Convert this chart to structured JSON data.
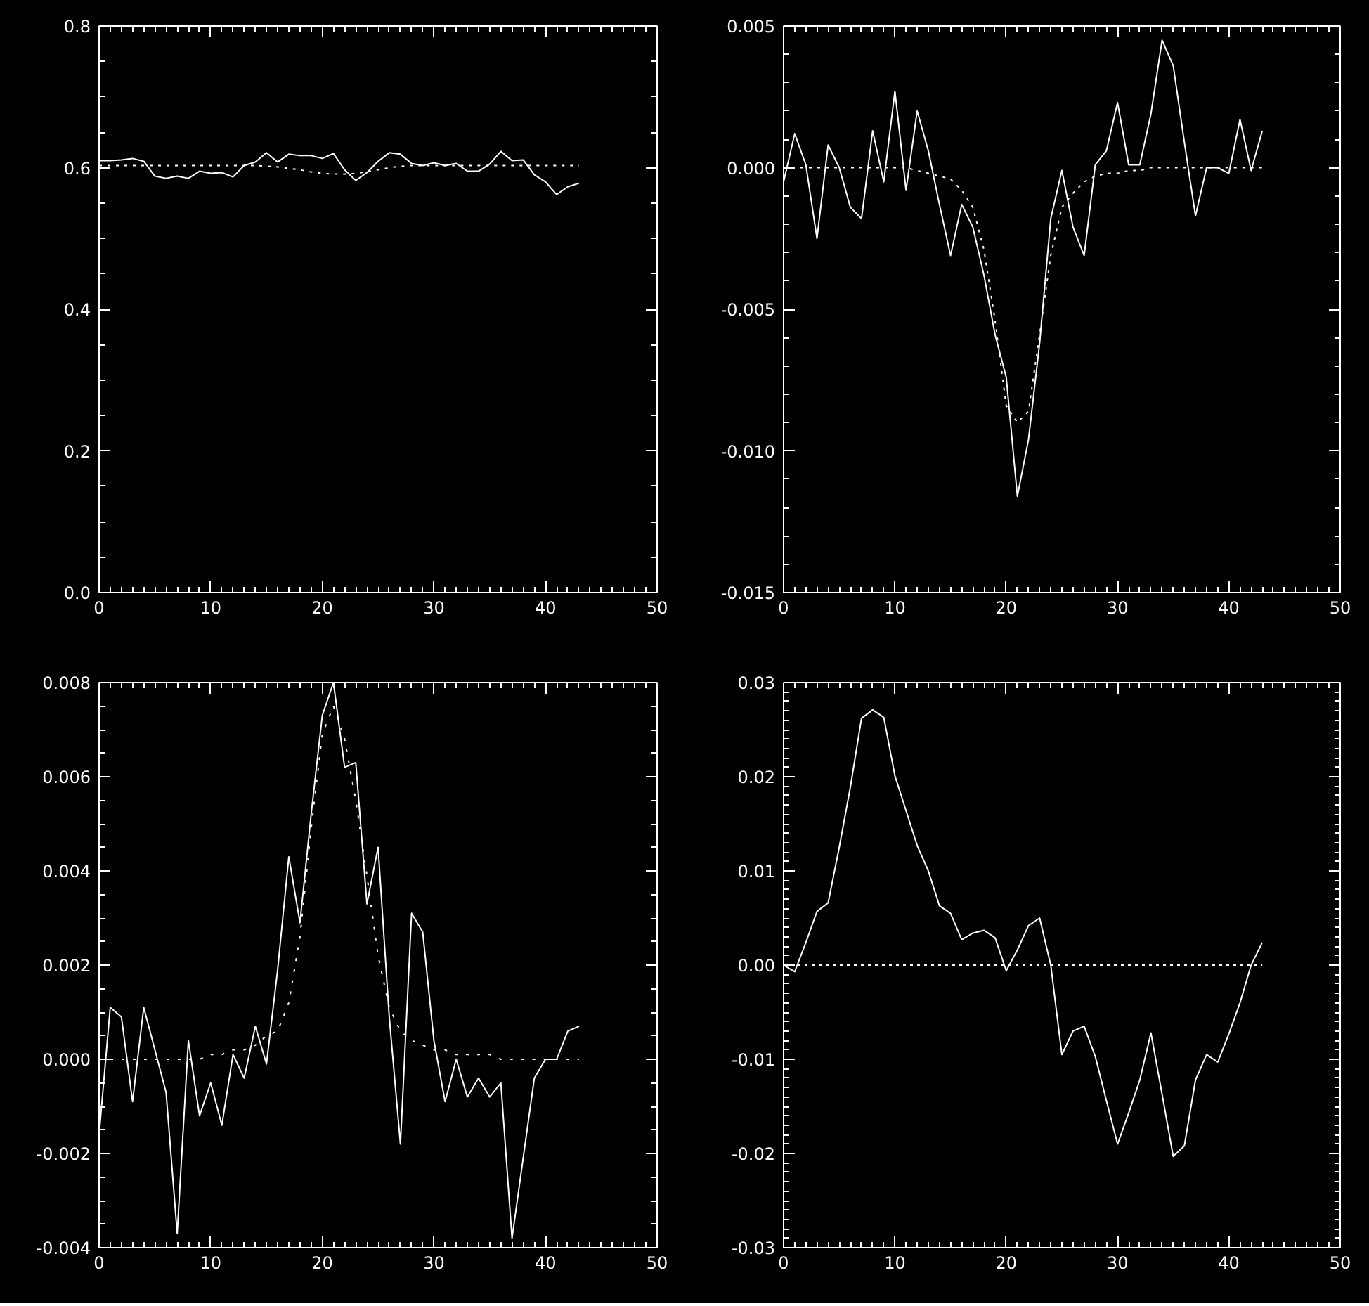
{
  "chart_data": [
    {
      "type": "line",
      "xlim": [
        0,
        50
      ],
      "ylim": [
        0,
        0.8
      ],
      "xticks": [
        0,
        {
          "value": 1,
          "label": null
        },
        {
          "value": 2,
          "label": null
        },
        {
          "value": 3,
          "label": null
        },
        {
          "value": 4,
          "label": null
        },
        {
          "value": 5,
          "label": null
        },
        {
          "value": 6,
          "label": null
        },
        {
          "value": 7,
          "label": null
        },
        {
          "value": 8,
          "label": null
        },
        {
          "value": 9,
          "label": null
        },
        10,
        {
          "value": 11,
          "label": null
        },
        {
          "value": 12,
          "label": null
        },
        {
          "value": 13,
          "label": null
        },
        {
          "value": 14,
          "label": null
        },
        {
          "value": 15,
          "label": null
        },
        {
          "value": 16,
          "label": null
        },
        {
          "value": 17,
          "label": null
        },
        {
          "value": 18,
          "label": null
        },
        {
          "value": 19,
          "label": null
        },
        20,
        {
          "value": 21,
          "label": null
        },
        {
          "value": 22,
          "label": null
        },
        {
          "value": 23,
          "label": null
        },
        {
          "value": 24,
          "label": null
        },
        {
          "value": 25,
          "label": null
        },
        {
          "value": 26,
          "label": null
        },
        {
          "value": 27,
          "label": null
        },
        {
          "value": 28,
          "label": null
        },
        {
          "value": 29,
          "label": null
        },
        30,
        {
          "value": 31,
          "label": null
        },
        {
          "value": 32,
          "label": null
        },
        {
          "value": 33,
          "label": null
        },
        {
          "value": 34,
          "label": null
        },
        {
          "value": 35,
          "label": null
        },
        {
          "value": 36,
          "label": null
        },
        {
          "value": 37,
          "label": null
        },
        {
          "value": 38,
          "label": null
        },
        {
          "value": 39,
          "label": null
        },
        40,
        {
          "value": 41,
          "label": null
        },
        {
          "value": 42,
          "label": null
        },
        {
          "value": 43,
          "label": null
        },
        {
          "value": 44,
          "label": null
        },
        {
          "value": 45,
          "label": null
        },
        {
          "value": 46,
          "label": null
        },
        {
          "value": 47,
          "label": null
        },
        {
          "value": 48,
          "label": null
        },
        {
          "value": 49,
          "label": null
        },
        50
      ],
      "yticks": [
        {
          "value": 0,
          "label": "0.0"
        },
        {
          "value": 0.05,
          "label": null
        },
        {
          "value": 0.1,
          "label": null
        },
        {
          "value": 0.15,
          "label": null
        },
        0.2,
        {
          "value": 0.25,
          "label": null
        },
        {
          "value": 0.3,
          "label": null
        },
        {
          "value": 0.35,
          "label": null
        },
        0.4,
        {
          "value": 0.45,
          "label": null
        },
        {
          "value": 0.5,
          "label": null
        },
        {
          "value": 0.55,
          "label": null
        },
        0.6,
        {
          "value": 0.65,
          "label": null
        },
        {
          "value": 0.7,
          "label": null
        },
        {
          "value": 0.75,
          "label": null
        },
        0.8
      ],
      "x": [
        0,
        1,
        2,
        3,
        4,
        5,
        6,
        7,
        8,
        9,
        10,
        11,
        12,
        13,
        14,
        15,
        16,
        17,
        18,
        19,
        20,
        21,
        22,
        23,
        24,
        25,
        26,
        27,
        28,
        29,
        30,
        31,
        32,
        33,
        34,
        35,
        36,
        37,
        38,
        39,
        40,
        41,
        42,
        43
      ],
      "series": [
        {
          "color": "#ffffff",
          "line_style": "solid",
          "values": [
            0.61,
            0.61,
            0.611,
            0.613,
            0.609,
            0.588,
            0.585,
            0.588,
            0.585,
            0.595,
            0.592,
            0.593,
            0.587,
            0.603,
            0.608,
            0.621,
            0.608,
            0.619,
            0.617,
            0.617,
            0.613,
            0.62,
            0.597,
            0.582,
            0.593,
            0.609,
            0.621,
            0.619,
            0.606,
            0.603,
            0.607,
            0.603,
            0.606,
            0.595,
            0.595,
            0.605,
            0.623,
            0.61,
            0.611,
            0.59,
            0.58,
            0.562,
            0.573,
            0.578
          ]
        },
        {
          "color": "#ffffff",
          "line_style": "dotted",
          "values": [
            0.603,
            0.603,
            0.603,
            0.603,
            0.603,
            0.603,
            0.603,
            0.603,
            0.603,
            0.603,
            0.603,
            0.603,
            0.603,
            0.603,
            0.603,
            0.602,
            0.601,
            0.599,
            0.597,
            0.594,
            0.592,
            0.591,
            0.591,
            0.592,
            0.594,
            0.597,
            0.6,
            0.602,
            0.603,
            0.603,
            0.603,
            0.603,
            0.603,
            0.603,
            0.603,
            0.603,
            0.603,
            0.603,
            0.603,
            0.603,
            0.603,
            0.603,
            0.603,
            0.603
          ]
        }
      ]
    },
    {
      "type": "line",
      "xlim": [
        0,
        50
      ],
      "ylim": [
        -0.015,
        0.005
      ],
      "xticks": [
        0,
        {
          "value": 1,
          "label": null
        },
        {
          "value": 2,
          "label": null
        },
        {
          "value": 3,
          "label": null
        },
        {
          "value": 4,
          "label": null
        },
        {
          "value": 5,
          "label": null
        },
        {
          "value": 6,
          "label": null
        },
        {
          "value": 7,
          "label": null
        },
        {
          "value": 8,
          "label": null
        },
        {
          "value": 9,
          "label": null
        },
        10,
        {
          "value": 11,
          "label": null
        },
        {
          "value": 12,
          "label": null
        },
        {
          "value": 13,
          "label": null
        },
        {
          "value": 14,
          "label": null
        },
        {
          "value": 15,
          "label": null
        },
        {
          "value": 16,
          "label": null
        },
        {
          "value": 17,
          "label": null
        },
        {
          "value": 18,
          "label": null
        },
        {
          "value": 19,
          "label": null
        },
        20,
        {
          "value": 21,
          "label": null
        },
        {
          "value": 22,
          "label": null
        },
        {
          "value": 23,
          "label": null
        },
        {
          "value": 24,
          "label": null
        },
        {
          "value": 25,
          "label": null
        },
        {
          "value": 26,
          "label": null
        },
        {
          "value": 27,
          "label": null
        },
        {
          "value": 28,
          "label": null
        },
        {
          "value": 29,
          "label": null
        },
        30,
        {
          "value": 31,
          "label": null
        },
        {
          "value": 32,
          "label": null
        },
        {
          "value": 33,
          "label": null
        },
        {
          "value": 34,
          "label": null
        },
        {
          "value": 35,
          "label": null
        },
        {
          "value": 36,
          "label": null
        },
        {
          "value": 37,
          "label": null
        },
        {
          "value": 38,
          "label": null
        },
        {
          "value": 39,
          "label": null
        },
        40,
        {
          "value": 41,
          "label": null
        },
        {
          "value": 42,
          "label": null
        },
        {
          "value": 43,
          "label": null
        },
        {
          "value": 44,
          "label": null
        },
        {
          "value": 45,
          "label": null
        },
        {
          "value": 46,
          "label": null
        },
        {
          "value": 47,
          "label": null
        },
        {
          "value": 48,
          "label": null
        },
        {
          "value": 49,
          "label": null
        },
        50
      ],
      "yticks": [
        -0.015,
        {
          "value": -0.014,
          "label": null
        },
        {
          "value": -0.013,
          "label": null
        },
        {
          "value": -0.012,
          "label": null
        },
        {
          "value": -0.011,
          "label": null
        },
        {
          "value": -0.01,
          "label": "-0.010"
        },
        {
          "value": -0.009,
          "label": null
        },
        {
          "value": -0.008,
          "label": null
        },
        {
          "value": -0.007,
          "label": null
        },
        {
          "value": -0.006,
          "label": null
        },
        -0.005,
        {
          "value": -0.004,
          "label": null
        },
        {
          "value": -0.003,
          "label": null
        },
        {
          "value": -0.002,
          "label": null
        },
        {
          "value": -0.001,
          "label": null
        },
        {
          "value": 0,
          "label": "0.000"
        },
        {
          "value": 0.001,
          "label": null
        },
        {
          "value": 0.002,
          "label": null
        },
        {
          "value": 0.003,
          "label": null
        },
        {
          "value": 0.004,
          "label": null
        },
        0.005
      ],
      "x": [
        0,
        1,
        2,
        3,
        4,
        5,
        6,
        7,
        8,
        9,
        10,
        11,
        12,
        13,
        14,
        15,
        16,
        17,
        18,
        19,
        20,
        21,
        22,
        23,
        24,
        25,
        26,
        27,
        28,
        29,
        30,
        31,
        32,
        33,
        34,
        35,
        36,
        37,
        38,
        39,
        40,
        41,
        42,
        43
      ],
      "series": [
        {
          "color": "#ffffff",
          "line_style": "solid",
          "values": [
            -0.0005,
            0.0012,
            0.0001,
            -0.0025,
            0.0008,
            0.0,
            -0.0014,
            -0.0018,
            0.0013,
            -0.0005,
            0.0027,
            -0.0008,
            0.002,
            0.0006,
            -0.0013,
            -0.0031,
            -0.0013,
            -0.0021,
            -0.0038,
            -0.0059,
            -0.0074,
            -0.0116,
            -0.0096,
            -0.0062,
            -0.0018,
            -0.0001,
            -0.0021,
            -0.0031,
            0.0001,
            0.0006,
            0.0023,
            0.0001,
            0.0001,
            0.0019,
            0.0045,
            0.0036,
            0.0009,
            -0.0017,
            0.0,
            0.0,
            -0.0002,
            0.0017,
            -0.0001,
            0.0013
          ]
        },
        {
          "color": "#ffffff",
          "line_style": "dotted",
          "values": [
            0.0,
            0.0,
            0.0,
            0.0,
            0.0,
            0.0,
            0.0,
            0.0,
            0.0,
            0.0,
            0.0,
            0.0,
            -0.0001,
            -0.0002,
            -0.0003,
            -0.0004,
            -0.0008,
            -0.0014,
            -0.0029,
            -0.0054,
            -0.0084,
            -0.009,
            -0.0086,
            -0.0059,
            -0.0031,
            -0.0014,
            -0.0009,
            -0.0005,
            -0.0003,
            -0.0002,
            -0.0002,
            -0.0001,
            -0.0001,
            0.0,
            0.0,
            0.0,
            0.0,
            0.0,
            0.0,
            0.0,
            0.0,
            0.0,
            0.0,
            0.0
          ]
        }
      ]
    },
    {
      "type": "line",
      "xlim": [
        0,
        50
      ],
      "ylim": [
        -0.004,
        0.008
      ],
      "xticks": [
        0,
        {
          "value": 1,
          "label": null
        },
        {
          "value": 2,
          "label": null
        },
        {
          "value": 3,
          "label": null
        },
        {
          "value": 4,
          "label": null
        },
        {
          "value": 5,
          "label": null
        },
        {
          "value": 6,
          "label": null
        },
        {
          "value": 7,
          "label": null
        },
        {
          "value": 8,
          "label": null
        },
        {
          "value": 9,
          "label": null
        },
        10,
        {
          "value": 11,
          "label": null
        },
        {
          "value": 12,
          "label": null
        },
        {
          "value": 13,
          "label": null
        },
        {
          "value": 14,
          "label": null
        },
        {
          "value": 15,
          "label": null
        },
        {
          "value": 16,
          "label": null
        },
        {
          "value": 17,
          "label": null
        },
        {
          "value": 18,
          "label": null
        },
        {
          "value": 19,
          "label": null
        },
        20,
        {
          "value": 21,
          "label": null
        },
        {
          "value": 22,
          "label": null
        },
        {
          "value": 23,
          "label": null
        },
        {
          "value": 24,
          "label": null
        },
        {
          "value": 25,
          "label": null
        },
        {
          "value": 26,
          "label": null
        },
        {
          "value": 27,
          "label": null
        },
        {
          "value": 28,
          "label": null
        },
        {
          "value": 29,
          "label": null
        },
        30,
        {
          "value": 31,
          "label": null
        },
        {
          "value": 32,
          "label": null
        },
        {
          "value": 33,
          "label": null
        },
        {
          "value": 34,
          "label": null
        },
        {
          "value": 35,
          "label": null
        },
        {
          "value": 36,
          "label": null
        },
        {
          "value": 37,
          "label": null
        },
        {
          "value": 38,
          "label": null
        },
        {
          "value": 39,
          "label": null
        },
        40,
        {
          "value": 41,
          "label": null
        },
        {
          "value": 42,
          "label": null
        },
        {
          "value": 43,
          "label": null
        },
        {
          "value": 44,
          "label": null
        },
        {
          "value": 45,
          "label": null
        },
        {
          "value": 46,
          "label": null
        },
        {
          "value": 47,
          "label": null
        },
        {
          "value": 48,
          "label": null
        },
        {
          "value": 49,
          "label": null
        },
        50
      ],
      "yticks": [
        -0.004,
        {
          "value": -0.0035,
          "label": null
        },
        {
          "value": -0.003,
          "label": null
        },
        {
          "value": -0.0025,
          "label": null
        },
        -0.002,
        {
          "value": -0.0015,
          "label": null
        },
        {
          "value": -0.001,
          "label": null
        },
        {
          "value": -0.0005,
          "label": null
        },
        {
          "value": 0,
          "label": "0.000"
        },
        {
          "value": 0.0005,
          "label": null
        },
        {
          "value": 0.001,
          "label": null
        },
        {
          "value": 0.0015,
          "label": null
        },
        0.002,
        {
          "value": 0.0025,
          "label": null
        },
        {
          "value": 0.003,
          "label": null
        },
        {
          "value": 0.0035,
          "label": null
        },
        0.004,
        {
          "value": 0.0045,
          "label": null
        },
        {
          "value": 0.005,
          "label": null
        },
        {
          "value": 0.0055,
          "label": null
        },
        0.006,
        {
          "value": 0.0065,
          "label": null
        },
        {
          "value": 0.007,
          "label": null
        },
        {
          "value": 0.0075,
          "label": null
        },
        0.008
      ],
      "x": [
        0,
        1,
        2,
        3,
        4,
        5,
        6,
        7,
        8,
        9,
        10,
        11,
        12,
        13,
        14,
        15,
        16,
        17,
        18,
        19,
        20,
        21,
        22,
        23,
        24,
        25,
        26,
        27,
        28,
        29,
        30,
        31,
        32,
        33,
        34,
        35,
        36,
        37,
        38,
        39,
        40,
        41,
        42,
        43
      ],
      "series": [
        {
          "color": "#ffffff",
          "line_style": "solid",
          "values": [
            -0.0016,
            0.0011,
            0.0009,
            -0.0009,
            0.0011,
            0.0002,
            -0.0007,
            -0.0037,
            0.0004,
            -0.0012,
            -0.0005,
            -0.0014,
            0.0001,
            -0.0004,
            0.0007,
            -0.0001,
            0.0019,
            0.0043,
            0.0029,
            0.0052,
            0.0073,
            0.008,
            0.0062,
            0.0063,
            0.0033,
            0.0045,
            0.0009,
            -0.0018,
            0.0031,
            0.0027,
            0.0004,
            -0.0009,
            0.0,
            -0.0008,
            -0.0004,
            -0.0008,
            -0.0005,
            -0.0038,
            -0.0021,
            -0.0004,
            0.0,
            0.0,
            0.0006,
            0.0007
          ]
        },
        {
          "color": "#ffffff",
          "line_style": "dotted",
          "values": [
            0.0,
            0.0,
            0.0,
            0.0,
            0.0,
            0.0,
            0.0,
            0.0,
            0.0,
            0.0,
            0.0001,
            0.0001,
            0.0002,
            0.0002,
            0.0003,
            0.0005,
            0.0006,
            0.0012,
            0.0026,
            0.0049,
            0.0069,
            0.0075,
            0.0068,
            0.0055,
            0.0039,
            0.0022,
            0.0011,
            0.0006,
            0.0004,
            0.0003,
            0.0002,
            0.0002,
            0.0001,
            0.0001,
            0.0001,
            0.0001,
            0.0,
            0.0,
            0.0,
            0.0,
            0.0,
            0.0,
            0.0,
            0.0
          ]
        }
      ]
    },
    {
      "type": "line",
      "xlim": [
        0,
        50
      ],
      "ylim": [
        -0.03,
        0.03
      ],
      "xticks": [
        0,
        {
          "value": 1,
          "label": null
        },
        {
          "value": 2,
          "label": null
        },
        {
          "value": 3,
          "label": null
        },
        {
          "value": 4,
          "label": null
        },
        {
          "value": 5,
          "label": null
        },
        {
          "value": 6,
          "label": null
        },
        {
          "value": 7,
          "label": null
        },
        {
          "value": 8,
          "label": null
        },
        {
          "value": 9,
          "label": null
        },
        10,
        {
          "value": 11,
          "label": null
        },
        {
          "value": 12,
          "label": null
        },
        {
          "value": 13,
          "label": null
        },
        {
          "value": 14,
          "label": null
        },
        {
          "value": 15,
          "label": null
        },
        {
          "value": 16,
          "label": null
        },
        {
          "value": 17,
          "label": null
        },
        {
          "value": 18,
          "label": null
        },
        {
          "value": 19,
          "label": null
        },
        20,
        {
          "value": 21,
          "label": null
        },
        {
          "value": 22,
          "label": null
        },
        {
          "value": 23,
          "label": null
        },
        {
          "value": 24,
          "label": null
        },
        {
          "value": 25,
          "label": null
        },
        {
          "value": 26,
          "label": null
        },
        {
          "value": 27,
          "label": null
        },
        {
          "value": 28,
          "label": null
        },
        {
          "value": 29,
          "label": null
        },
        30,
        {
          "value": 31,
          "label": null
        },
        {
          "value": 32,
          "label": null
        },
        {
          "value": 33,
          "label": null
        },
        {
          "value": 34,
          "label": null
        },
        {
          "value": 35,
          "label": null
        },
        {
          "value": 36,
          "label": null
        },
        {
          "value": 37,
          "label": null
        },
        {
          "value": 38,
          "label": null
        },
        {
          "value": 39,
          "label": null
        },
        40,
        {
          "value": 41,
          "label": null
        },
        {
          "value": 42,
          "label": null
        },
        {
          "value": 43,
          "label": null
        },
        {
          "value": 44,
          "label": null
        },
        {
          "value": 45,
          "label": null
        },
        {
          "value": 46,
          "label": null
        },
        {
          "value": 47,
          "label": null
        },
        {
          "value": 48,
          "label": null
        },
        {
          "value": 49,
          "label": null
        },
        50
      ],
      "yticks": [
        -0.03,
        {
          "value": -0.029,
          "label": null
        },
        {
          "value": -0.028,
          "label": null
        },
        {
          "value": -0.027,
          "label": null
        },
        {
          "value": -0.026,
          "label": null
        },
        {
          "value": -0.025,
          "label": null
        },
        {
          "value": -0.024,
          "label": null
        },
        {
          "value": -0.023,
          "label": null
        },
        {
          "value": -0.022,
          "label": null
        },
        {
          "value": -0.021,
          "label": null
        },
        -0.02,
        {
          "value": -0.019,
          "label": null
        },
        {
          "value": -0.018,
          "label": null
        },
        {
          "value": -0.017,
          "label": null
        },
        {
          "value": -0.016,
          "label": null
        },
        {
          "value": -0.015,
          "label": null
        },
        {
          "value": -0.014,
          "label": null
        },
        {
          "value": -0.013,
          "label": null
        },
        {
          "value": -0.012,
          "label": null
        },
        {
          "value": -0.011,
          "label": null
        },
        -0.01,
        {
          "value": -0.009,
          "label": null
        },
        {
          "value": -0.008,
          "label": null
        },
        {
          "value": -0.007,
          "label": null
        },
        {
          "value": -0.006,
          "label": null
        },
        {
          "value": -0.005,
          "label": null
        },
        {
          "value": -0.004,
          "label": null
        },
        {
          "value": -0.003,
          "label": null
        },
        {
          "value": -0.002,
          "label": null
        },
        {
          "value": -0.001,
          "label": null
        },
        {
          "value": 0,
          "label": "0.00"
        },
        {
          "value": 0.001,
          "label": null
        },
        {
          "value": 0.002,
          "label": null
        },
        {
          "value": 0.003,
          "label": null
        },
        {
          "value": 0.004,
          "label": null
        },
        {
          "value": 0.005,
          "label": null
        },
        {
          "value": 0.006,
          "label": null
        },
        {
          "value": 0.007,
          "label": null
        },
        {
          "value": 0.008,
          "label": null
        },
        {
          "value": 0.009,
          "label": null
        },
        0.01,
        {
          "value": 0.011,
          "label": null
        },
        {
          "value": 0.012,
          "label": null
        },
        {
          "value": 0.013,
          "label": null
        },
        {
          "value": 0.014,
          "label": null
        },
        {
          "value": 0.015,
          "label": null
        },
        {
          "value": 0.016,
          "label": null
        },
        {
          "value": 0.017,
          "label": null
        },
        {
          "value": 0.018,
          "label": null
        },
        {
          "value": 0.019,
          "label": null
        },
        0.02,
        {
          "value": 0.021,
          "label": null
        },
        {
          "value": 0.022,
          "label": null
        },
        {
          "value": 0.023,
          "label": null
        },
        {
          "value": 0.024,
          "label": null
        },
        {
          "value": 0.025,
          "label": null
        },
        {
          "value": 0.026,
          "label": null
        },
        {
          "value": 0.027,
          "label": null
        },
        {
          "value": 0.028,
          "label": null
        },
        {
          "value": 0.029,
          "label": null
        },
        0.03
      ],
      "x": [
        0,
        1,
        2,
        3,
        4,
        5,
        6,
        7,
        8,
        9,
        10,
        11,
        12,
        13,
        14,
        15,
        16,
        17,
        18,
        19,
        20,
        21,
        22,
        23,
        24,
        25,
        26,
        27,
        28,
        29,
        30,
        31,
        32,
        33,
        34,
        35,
        36,
        37,
        38,
        39,
        40,
        41,
        42,
        43
      ],
      "series": [
        {
          "color": "#ffffff",
          "line_style": "solid",
          "values": [
            0.0,
            -0.0007,
            0.0024,
            0.0057,
            0.0066,
            0.0125,
            0.0189,
            0.0262,
            0.0271,
            0.0263,
            0.0201,
            0.0164,
            0.0127,
            0.01,
            0.0063,
            0.0055,
            0.0027,
            0.0034,
            0.0037,
            0.0029,
            -0.0006,
            0.0016,
            0.0042,
            0.005,
            0.0,
            -0.0095,
            -0.007,
            -0.0065,
            -0.0097,
            -0.0144,
            -0.019,
            -0.0157,
            -0.0122,
            -0.0072,
            -0.0137,
            -0.0203,
            -0.0192,
            -0.0122,
            -0.0095,
            -0.0103,
            -0.0073,
            -0.004,
            0.0,
            0.0024
          ]
        },
        {
          "color": "#ffffff",
          "line_style": "dotted",
          "values": [
            0.0,
            0.0,
            0.0,
            0.0,
            0.0,
            0.0,
            0.0,
            0.0,
            0.0,
            0.0,
            0.0,
            0.0,
            0.0,
            0.0,
            0.0,
            0.0,
            0.0,
            0.0,
            0.0,
            0.0,
            0.0,
            0.0,
            0.0,
            0.0,
            0.0,
            0.0,
            0.0,
            0.0,
            0.0,
            0.0,
            0.0,
            0.0,
            0.0,
            0.0,
            0.0,
            0.0,
            0.0,
            0.0,
            0.0,
            0.0,
            0.0,
            0.0,
            0.0,
            0.0
          ]
        }
      ]
    }
  ]
}
